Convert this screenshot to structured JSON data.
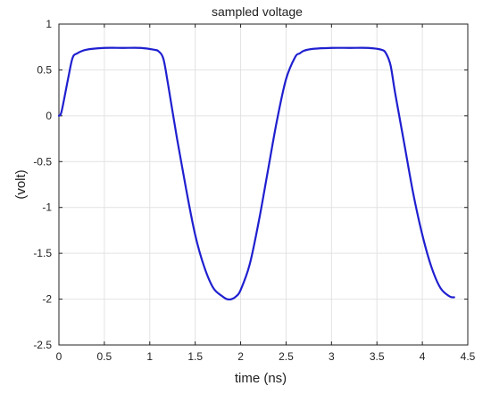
{
  "chart_data": {
    "type": "line",
    "title": "sampled voltage",
    "xlabel": "time (ns)",
    "ylabel": "(volt)",
    "xlim": [
      0,
      4.5
    ],
    "ylim": [
      -2.5,
      1
    ],
    "grid": true,
    "legend": "none",
    "xticks": [
      0,
      0.5,
      1,
      1.5,
      2,
      2.5,
      3,
      3.5,
      4,
      4.5
    ],
    "xtick_labels": [
      "0",
      "0.5",
      "1",
      "1.5",
      "2",
      "2.5",
      "3",
      "3.5",
      "4",
      "4.5"
    ],
    "yticks": [
      1,
      0.5,
      0,
      -0.5,
      -1,
      -1.5,
      -2,
      -2.5
    ],
    "ytick_labels": [
      "1",
      "0.5",
      "0",
      "-0.5",
      "-1",
      "-1.5",
      "-2",
      "-2.5"
    ],
    "series": [
      {
        "color": "#1f1fd0",
        "x": [
          0,
          0.03,
          0.1,
          0.15,
          0.2,
          0.3,
          0.5,
          0.7,
          0.9,
          1.05,
          1.1,
          1.15,
          1.2,
          1.3,
          1.4,
          1.5,
          1.6,
          1.7,
          1.8,
          1.85,
          1.9,
          1.95,
          2.0,
          2.1,
          2.2,
          2.3,
          2.4,
          2.5,
          2.6,
          2.65,
          2.7,
          2.8,
          3.0,
          3.2,
          3.4,
          3.55,
          3.6,
          3.65,
          3.7,
          3.8,
          3.9,
          4.0,
          4.1,
          4.2,
          4.3,
          4.35
        ],
        "y": [
          0,
          0.05,
          0.4,
          0.63,
          0.68,
          0.72,
          0.74,
          0.74,
          0.74,
          0.72,
          0.7,
          0.62,
          0.35,
          -0.25,
          -0.8,
          -1.3,
          -1.65,
          -1.88,
          -1.97,
          -2.0,
          -2.0,
          -1.97,
          -1.9,
          -1.62,
          -1.15,
          -0.6,
          -0.05,
          0.4,
          0.64,
          0.68,
          0.71,
          0.73,
          0.74,
          0.74,
          0.74,
          0.72,
          0.68,
          0.55,
          0.25,
          -0.3,
          -0.85,
          -1.3,
          -1.65,
          -1.88,
          -1.97,
          -1.98
        ]
      }
    ]
  },
  "colors": {
    "grid": "#e2e2e2",
    "axes": "#222222"
  }
}
